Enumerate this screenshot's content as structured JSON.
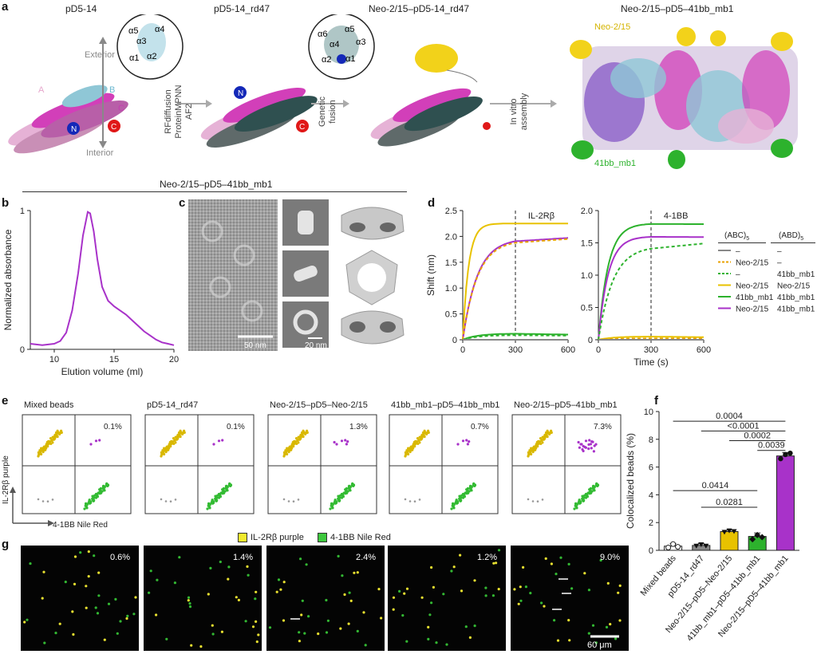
{
  "panel_a": {
    "label": "a",
    "titles": [
      "pD5-14",
      "pD5-14_rd47",
      "Neo-2/15–pD5-14_rd47",
      "Neo-2/15–pD5–41bb_mb1"
    ],
    "inset1": [
      "α5",
      "α4",
      "α3",
      "α1",
      "α2"
    ],
    "inset2": [
      "α6",
      "α5",
      "α4",
      "α3",
      "α2",
      "α1"
    ],
    "exterior": "Exterior",
    "interior": "Interior",
    "chain_A": "A",
    "chain_B": "B",
    "chain_C": "C",
    "term_N": "N",
    "term_C": "C",
    "step1": [
      "RFdiffusion",
      "ProteinMPNN",
      "AF2"
    ],
    "step2": [
      "Genetic",
      "fusion"
    ],
    "step3": [
      "In vitro",
      "assembly"
    ],
    "neo_label": "Neo-2/15",
    "bb_label": "41bb_mb1"
  },
  "section_title": "Neo-2/15–pD5–41bb_mb1",
  "panel_b": {
    "label": "b",
    "chart_data": {
      "type": "line",
      "xlabel": "Elution volume (ml)",
      "ylabel": "Normalized absorbance",
      "xlim": [
        8,
        20
      ],
      "ylim": [
        0,
        1
      ],
      "xticks": [
        "10",
        "15",
        "20"
      ],
      "yticks": [
        "0",
        "1"
      ],
      "color": "#a832c9",
      "x": [
        8.0,
        9.0,
        10.0,
        10.5,
        11.0,
        11.5,
        12.0,
        12.4,
        12.8,
        13.0,
        13.3,
        13.6,
        14.0,
        14.5,
        15.0,
        15.5,
        16.0,
        16.5,
        17.0,
        17.5,
        18.0,
        18.5,
        19.0,
        19.5,
        20.0
      ],
      "y": [
        0.04,
        0.03,
        0.04,
        0.06,
        0.12,
        0.28,
        0.55,
        0.82,
        0.99,
        0.98,
        0.85,
        0.65,
        0.45,
        0.35,
        0.31,
        0.28,
        0.25,
        0.21,
        0.17,
        0.13,
        0.1,
        0.07,
        0.05,
        0.04,
        0.03
      ]
    }
  },
  "panel_c": {
    "label": "c",
    "scale_50": "50 nm",
    "scale_20": "20 nm"
  },
  "panel_d": {
    "label": "d",
    "chart_data": [
      {
        "type": "line",
        "title": "IL-2Rβ",
        "xlabel": "",
        "ylabel": "Shift (nm)",
        "xlim": [
          0,
          600
        ],
        "ylim": [
          0,
          2.5
        ],
        "xticks": [
          "0",
          "300",
          "600"
        ],
        "yticks": [
          "0",
          "0.5",
          "1.0",
          "1.5",
          "2.0",
          "2.5"
        ],
        "series": [
          {
            "color": "#e8c200",
            "dash": false,
            "plateau": 2.25,
            "k": 0.03,
            "dissoc_end": 2.25
          },
          {
            "color": "#a832c9",
            "dash": false,
            "plateau": 1.96,
            "k": 0.012,
            "dissoc_end": 1.97
          },
          {
            "color": "#e8a200",
            "dash": true,
            "plateau": 1.93,
            "k": 0.012,
            "dissoc_end": 1.95
          },
          {
            "color": "#2db22d",
            "dash": false,
            "plateau": 0.12,
            "k": 0.012,
            "dissoc_end": 0.1
          },
          {
            "color": "#2db22d",
            "dash": true,
            "plateau": 0.09,
            "k": 0.012,
            "dissoc_end": 0.08
          },
          {
            "color": "#888888",
            "dash": false,
            "plateau": 0.0,
            "k": 0.012,
            "dissoc_end": 0.0
          }
        ]
      },
      {
        "type": "line",
        "title": "4-1BB",
        "xlabel": "Time (s)",
        "ylabel": "",
        "xlim": [
          0,
          600
        ],
        "ylim": [
          0,
          2.0
        ],
        "xticks": [
          "0",
          "300",
          "600"
        ],
        "yticks": [
          "0",
          "0.5",
          "1.0",
          "1.5",
          "2.0"
        ],
        "series": [
          {
            "color": "#2db22d",
            "dash": false,
            "plateau": 1.8,
            "k": 0.018,
            "dissoc_end": 1.79
          },
          {
            "color": "#a832c9",
            "dash": false,
            "plateau": 1.6,
            "k": 0.018,
            "dissoc_end": 1.59
          },
          {
            "color": "#2db22d",
            "dash": true,
            "plateau": 1.45,
            "k": 0.012,
            "dissoc_end": 1.49
          },
          {
            "color": "#e8c200",
            "dash": false,
            "plateau": 0.05,
            "k": 0.012,
            "dissoc_end": 0.04
          },
          {
            "color": "#e8a200",
            "dash": true,
            "plateau": 0.02,
            "k": 0.012,
            "dissoc_end": 0.02
          },
          {
            "color": "#888888",
            "dash": false,
            "plateau": 0.0,
            "k": 0.012,
            "dissoc_end": 0.0
          }
        ]
      }
    ],
    "legend_head1": "(ABC)",
    "legend_head2": "(ABD)",
    "legend_sub": "5",
    "legend_rows": [
      {
        "color": "#888888",
        "dash": false,
        "c1": "–",
        "c2": "–"
      },
      {
        "color": "#e8a200",
        "dash": true,
        "c1": "Neo-2/15",
        "c2": "–"
      },
      {
        "color": "#2db22d",
        "dash": true,
        "c1": "–",
        "c2": "41bb_mb1"
      },
      {
        "color": "#e8c200",
        "dash": false,
        "c1": "Neo-2/15",
        "c2": "Neo-2/15"
      },
      {
        "color": "#2db22d",
        "dash": false,
        "c1": "41bb_mb1",
        "c2": "41bb_mb1"
      },
      {
        "color": "#a832c9",
        "dash": false,
        "c1": "Neo-2/15",
        "c2": "41bb_mb1"
      }
    ]
  },
  "panel_e": {
    "label": "e",
    "plots": [
      {
        "title": "Mixed beads",
        "pct": "0.1%"
      },
      {
        "title": "pD5-14_rd47",
        "pct": "0.1%"
      },
      {
        "title": "Neo-2/15–pD5–Neo-2/15",
        "pct": "1.3%"
      },
      {
        "title": "41bb_mb1–pD5–41bb_mb1",
        "pct": "0.7%"
      },
      {
        "title": "Neo-2/15–pD5–41bb_mb1",
        "pct": "7.3%"
      }
    ],
    "yaxis": "IL-2Rβ purple",
    "xaxis": "4-1BB Nile Red"
  },
  "panel_f": {
    "label": "f",
    "chart_data": {
      "type": "bar",
      "ylabel": "Colocalized beads (%)",
      "ylim": [
        0,
        10
      ],
      "yticks": [
        "0",
        "2",
        "4",
        "6",
        "8",
        "10"
      ],
      "categories": [
        "Mixed beads",
        "pD5-14_rd47",
        "Neo-2/15–pD5–Neo-2/15",
        "41bb_mb1–pD5–41bb_mb1",
        "Neo-2/15–pD5–41bb_mb1"
      ],
      "values": [
        0.3,
        0.35,
        1.35,
        1.0,
        6.8
      ],
      "errors": [
        0.2,
        0.15,
        0.1,
        0.25,
        0.25
      ],
      "colors": [
        "#ffffff",
        "#888888",
        "#e8c200",
        "#2db22d",
        "#a832c9"
      ],
      "points": [
        [
          0.2,
          0.45,
          0.25
        ],
        [
          0.3,
          0.4,
          0.3
        ],
        [
          1.3,
          1.4,
          1.35
        ],
        [
          0.8,
          1.1,
          0.95
        ],
        [
          6.6,
          6.9,
          7.0
        ]
      ],
      "pvalues": [
        {
          "text": "0.0004",
          "from": 0,
          "to": 4,
          "y": 9.3
        },
        {
          "text": "<0.0001",
          "from": 1,
          "to": 4,
          "y": 8.6
        },
        {
          "text": "0.0002",
          "from": 2,
          "to": 4,
          "y": 7.9
        },
        {
          "text": "0.0039",
          "from": 3,
          "to": 4,
          "y": 7.2
        },
        {
          "text": "0.0414",
          "from": 0,
          "to": 3,
          "y": 4.3
        },
        {
          "text": "0.0281",
          "from": 1,
          "to": 3,
          "y": 3.1
        }
      ]
    }
  },
  "panel_g": {
    "label": "g",
    "legend_purple": "IL-2Rβ purple",
    "legend_red": "4-1BB Nile Red",
    "legend_purple_color": "#f2ea2e",
    "legend_red_color": "#3ec83e",
    "pcts": [
      "0.6%",
      "1.4%",
      "2.4%",
      "1.2%",
      "9.0%"
    ],
    "scale": "60 μm"
  }
}
